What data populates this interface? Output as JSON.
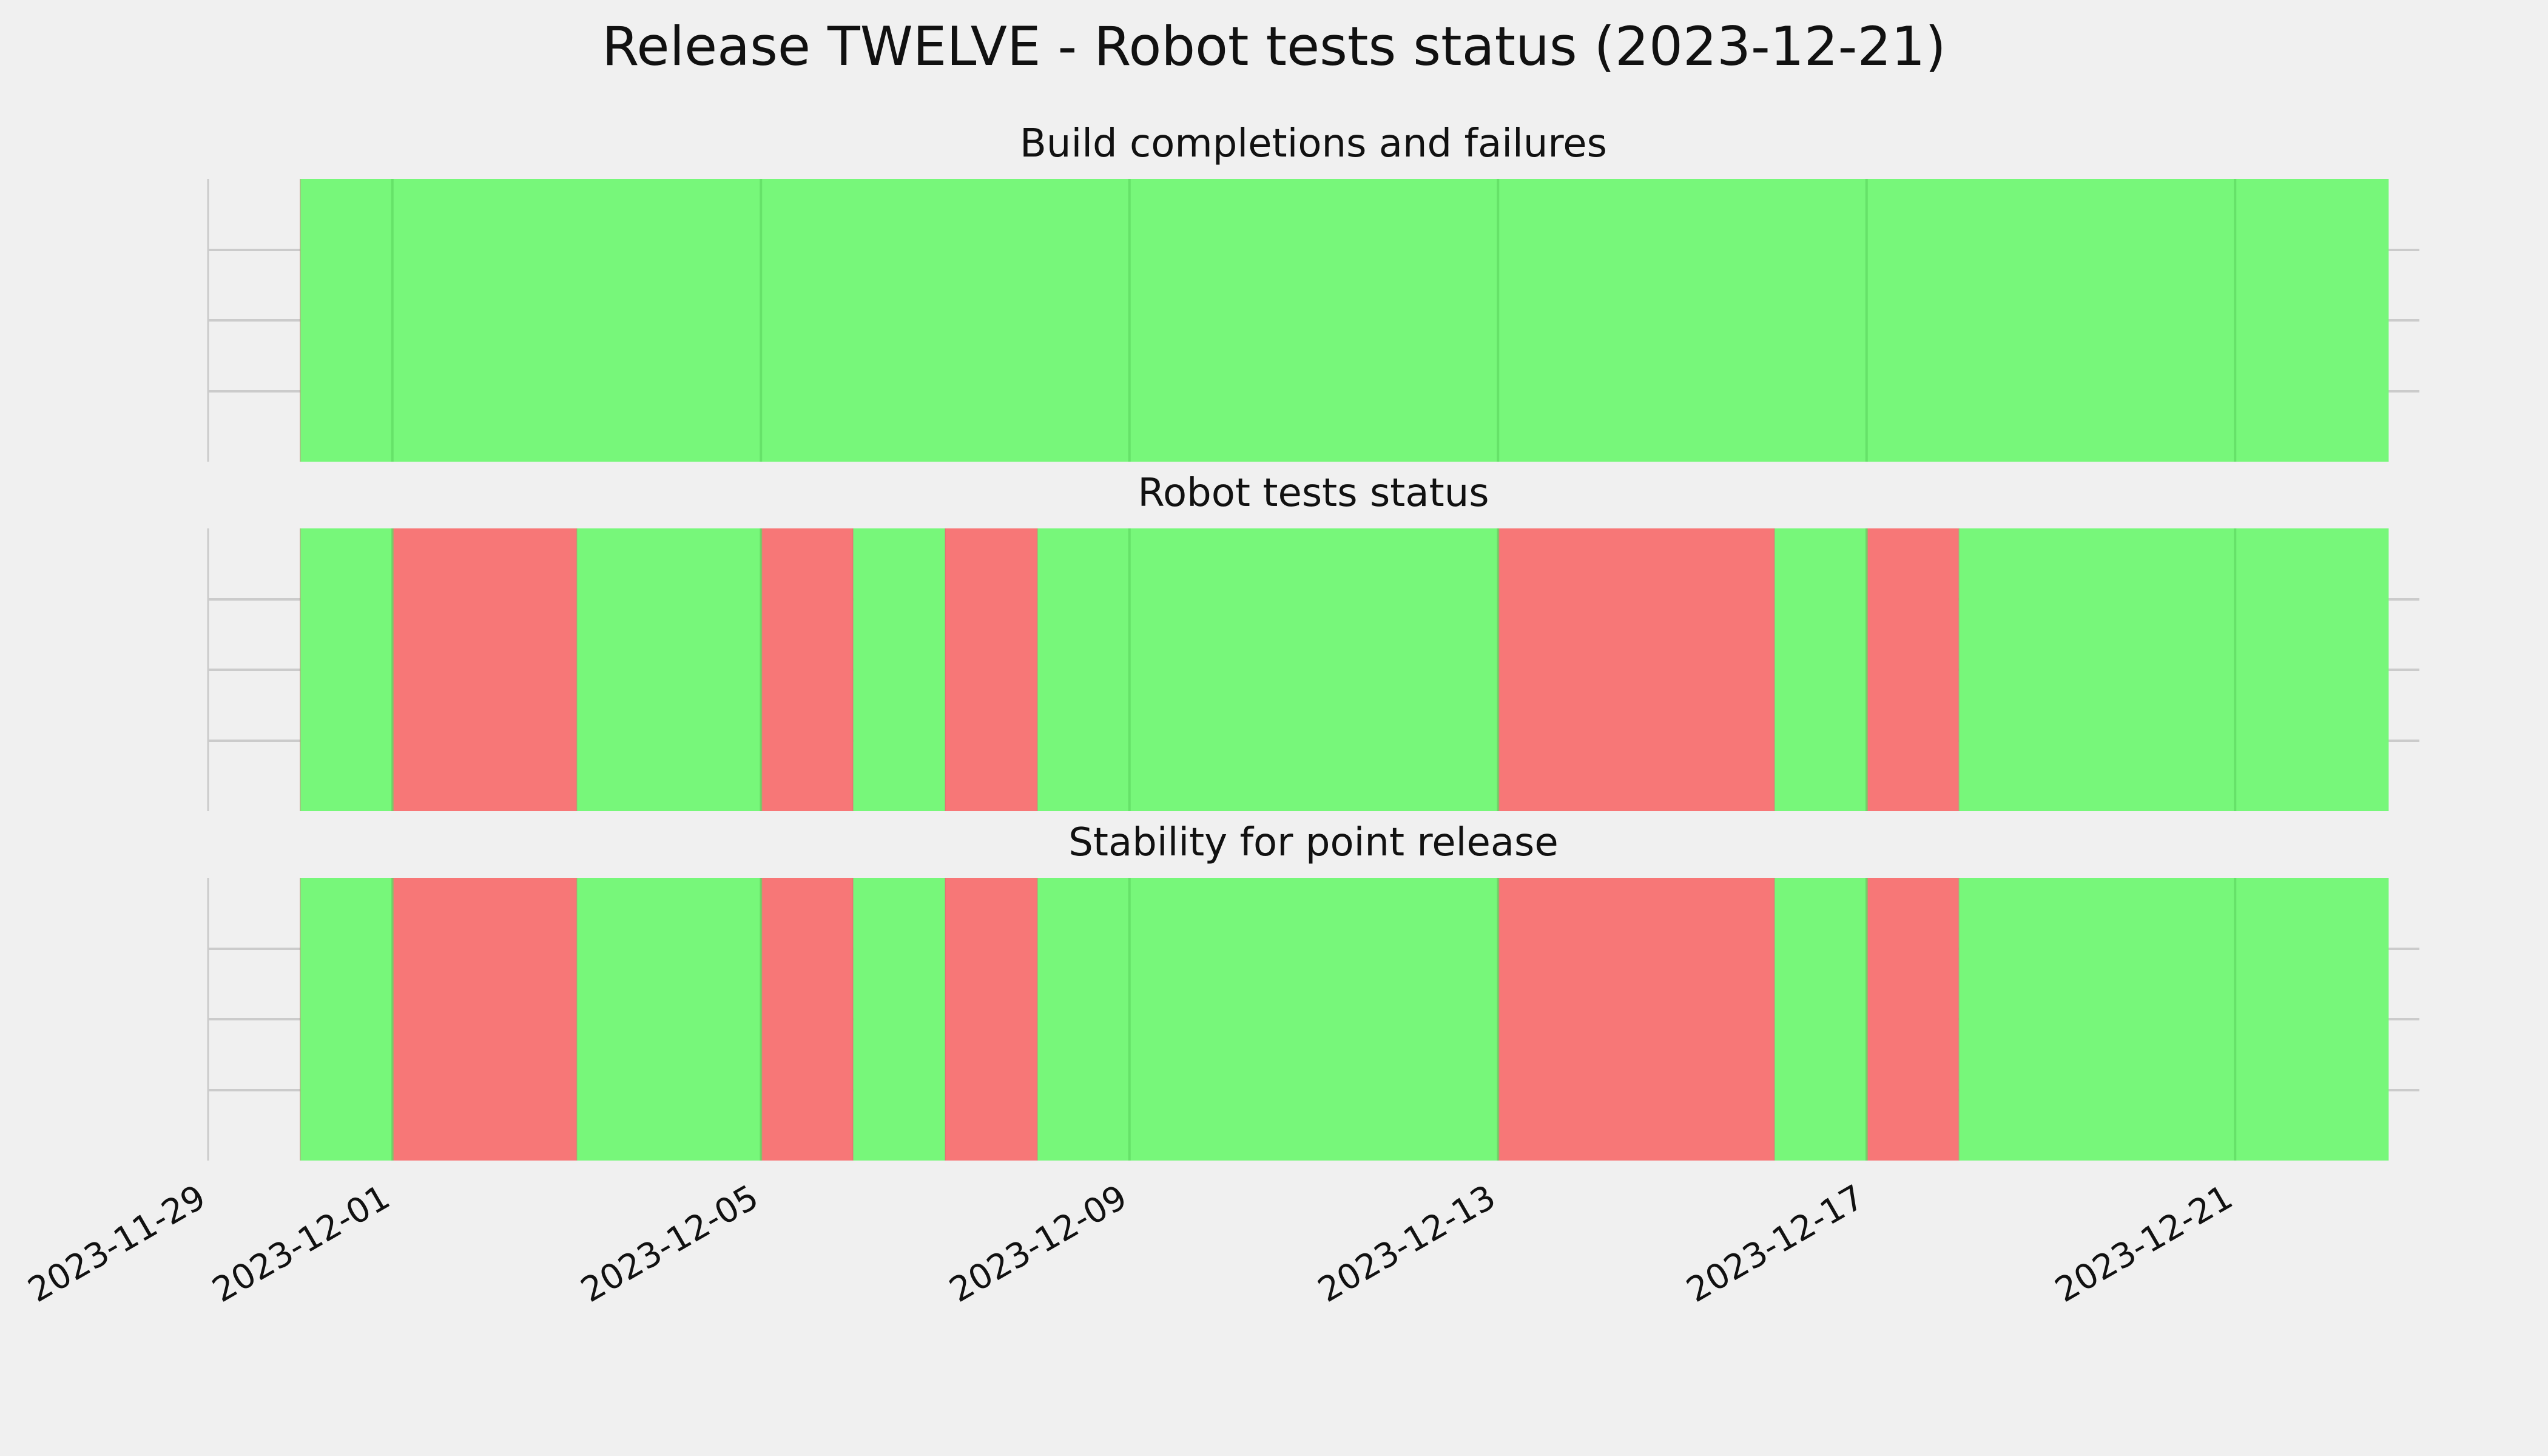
{
  "title": "Release TWELVE - Robot tests status (2023-12-21)",
  "colors": {
    "background": "#f0f0f0",
    "pass": "#77f77a",
    "fail": "#f77777",
    "grid": "#cbcbcb",
    "vgrid": "#5fd863"
  },
  "chart_data": {
    "type": "timeline",
    "x_axis": {
      "type": "date",
      "xlim": [
        "2023-11-29",
        "2023-12-23"
      ],
      "ticks": [
        "2023-11-29",
        "2023-12-01",
        "2023-12-05",
        "2023-12-09",
        "2023-12-13",
        "2023-12-17",
        "2023-12-21"
      ]
    },
    "grid": true,
    "panels": [
      {
        "title": "Build completions and failures",
        "segments": [
          {
            "start": "2023-11-30",
            "end": "2023-12-22T16:00",
            "status": "pass"
          }
        ]
      },
      {
        "title": "Robot tests status",
        "segments": [
          {
            "start": "2023-11-30",
            "end": "2023-12-01",
            "status": "pass"
          },
          {
            "start": "2023-12-01",
            "end": "2023-12-03",
            "status": "fail"
          },
          {
            "start": "2023-12-03",
            "end": "2023-12-05",
            "status": "pass"
          },
          {
            "start": "2023-12-05",
            "end": "2023-12-06",
            "status": "fail"
          },
          {
            "start": "2023-12-06",
            "end": "2023-12-07",
            "status": "pass"
          },
          {
            "start": "2023-12-07",
            "end": "2023-12-08",
            "status": "fail"
          },
          {
            "start": "2023-12-08",
            "end": "2023-12-13",
            "status": "pass"
          },
          {
            "start": "2023-12-13",
            "end": "2023-12-16",
            "status": "fail"
          },
          {
            "start": "2023-12-16",
            "end": "2023-12-17",
            "status": "pass"
          },
          {
            "start": "2023-12-17",
            "end": "2023-12-18",
            "status": "fail"
          },
          {
            "start": "2023-12-18",
            "end": "2023-12-22T16:00",
            "status": "pass"
          }
        ]
      },
      {
        "title": "Stability for point release",
        "segments": [
          {
            "start": "2023-11-30",
            "end": "2023-12-01",
            "status": "pass"
          },
          {
            "start": "2023-12-01",
            "end": "2023-12-03",
            "status": "fail"
          },
          {
            "start": "2023-12-03",
            "end": "2023-12-05",
            "status": "pass"
          },
          {
            "start": "2023-12-05",
            "end": "2023-12-06",
            "status": "fail"
          },
          {
            "start": "2023-12-06",
            "end": "2023-12-07",
            "status": "pass"
          },
          {
            "start": "2023-12-07",
            "end": "2023-12-08",
            "status": "fail"
          },
          {
            "start": "2023-12-08",
            "end": "2023-12-13",
            "status": "pass"
          },
          {
            "start": "2023-12-13",
            "end": "2023-12-16",
            "status": "fail"
          },
          {
            "start": "2023-12-16",
            "end": "2023-12-17",
            "status": "pass"
          },
          {
            "start": "2023-12-17",
            "end": "2023-12-18",
            "status": "fail"
          },
          {
            "start": "2023-12-18",
            "end": "2023-12-22T16:00",
            "status": "pass"
          }
        ]
      }
    ]
  }
}
